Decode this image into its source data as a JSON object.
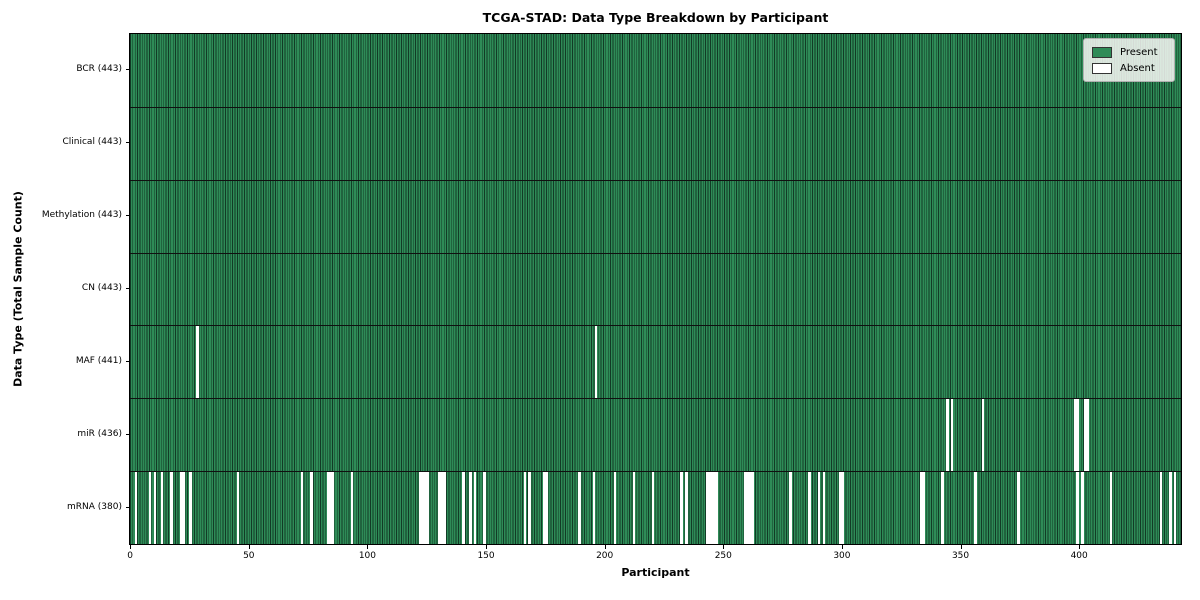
{
  "title": "TCGA-STAD: Data Type Breakdown by Participant",
  "legend": {
    "position": "upper-right",
    "items": [
      {
        "label": "Present",
        "color": "#2e8b57"
      },
      {
        "label": "Absent",
        "color": "#ffffff"
      }
    ]
  },
  "colors": {
    "present": "#2e8b57",
    "absent": "#ffffff",
    "bar_edge": "#123b26",
    "row_separator": "#101010",
    "legend_bg": "#f8f8f6"
  },
  "chart_data": {
    "type": "heatmap",
    "title": "TCGA-STAD: Data Type Breakdown by Participant",
    "xlabel": "Participant",
    "ylabel": "Data Type (Total Sample Count)",
    "legend_labels": [
      "Present",
      "Absent"
    ],
    "legend_position": "upper right",
    "grid": false,
    "n_participants": 443,
    "x_range": [
      -0.5,
      442.5
    ],
    "x_ticks": [
      0,
      50,
      100,
      150,
      200,
      250,
      300,
      350,
      400
    ],
    "rows": [
      {
        "name": "BCR",
        "label": "BCR (443)",
        "present_count": 443,
        "absent_participants": []
      },
      {
        "name": "Clinical",
        "label": "Clinical (443)",
        "present_count": 443,
        "absent_participants": []
      },
      {
        "name": "Methylation",
        "label": "Methylation (443)",
        "present_count": 443,
        "absent_participants": []
      },
      {
        "name": "CN",
        "label": "CN (443)",
        "present_count": 443,
        "absent_participants": []
      },
      {
        "name": "MAF",
        "label": "MAF (441)",
        "present_count": 441,
        "absent_participants": [
          28,
          196
        ]
      },
      {
        "name": "miR",
        "label": "miR (436)",
        "present_count": 436,
        "absent_participants": [
          344,
          346,
          359,
          398,
          399,
          402,
          403
        ]
      },
      {
        "name": "mRNA",
        "label": "mRNA (380)",
        "present_count": 380,
        "absent_participants": [
          2,
          8,
          10,
          13,
          17,
          21,
          22,
          25,
          45,
          72,
          76,
          83,
          84,
          85,
          93,
          122,
          123,
          124,
          125,
          130,
          131,
          132,
          140,
          143,
          145,
          149,
          166,
          168,
          174,
          175,
          189,
          195,
          204,
          212,
          220,
          232,
          234,
          243,
          244,
          245,
          246,
          247,
          259,
          260,
          261,
          262,
          278,
          286,
          290,
          292,
          299,
          300,
          333,
          334,
          342,
          356,
          374,
          399,
          401,
          413,
          434,
          438,
          440
        ]
      }
    ]
  }
}
